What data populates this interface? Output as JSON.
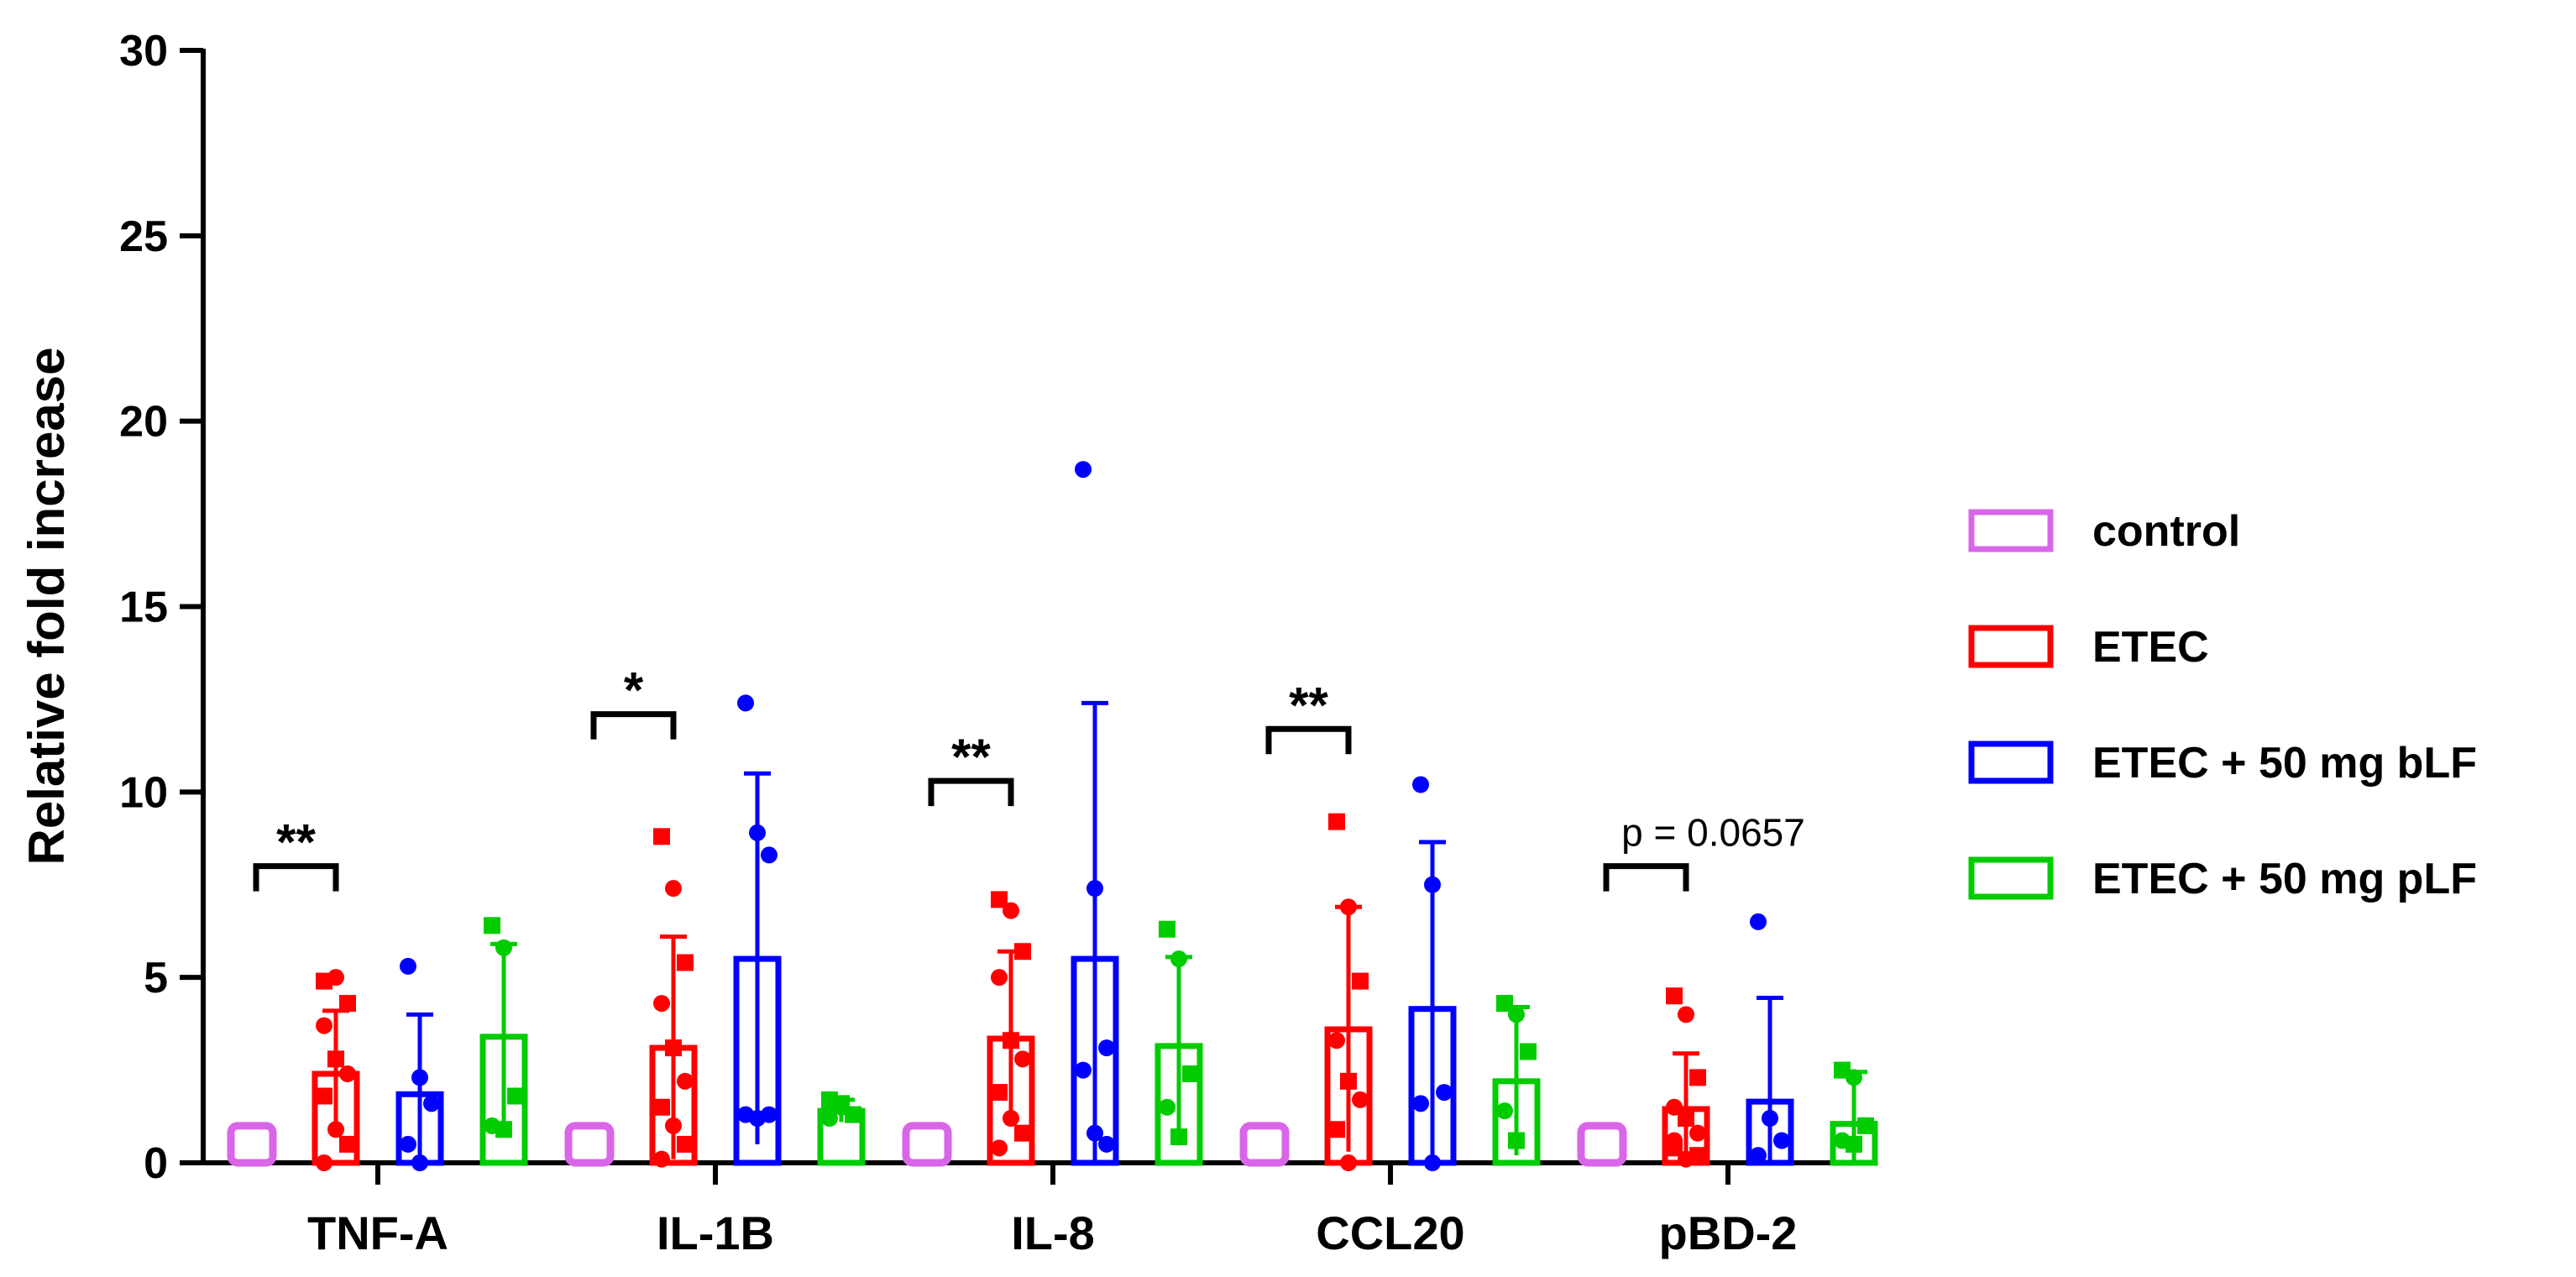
{
  "chart_data": {
    "type": "bar",
    "title": "",
    "xlabel": "",
    "ylabel": "Relative fold increase",
    "ylim": [
      0,
      30
    ],
    "yticks": [
      "0",
      "5",
      "10",
      "15",
      "20",
      "25",
      "30"
    ],
    "categories": [
      "TNF-A",
      "IL-1B",
      "IL-8",
      "CCL20",
      "pBD-2"
    ],
    "legend_position": "right",
    "series": [
      {
        "name": "control",
        "color": "#d966e8",
        "values": [
          1,
          1,
          1,
          1,
          1
        ],
        "errors": [
          0,
          0,
          0,
          0,
          0
        ],
        "points": [
          [],
          [],
          [],
          [],
          []
        ]
      },
      {
        "name": "ETEC",
        "color": "#ff0000",
        "values": [
          2.4,
          3.1,
          3.35,
          3.6,
          1.45
        ],
        "errors": [
          1.7,
          3.0,
          2.35,
          3.3,
          1.5
        ],
        "points": [
          [
            4.9,
            5.0,
            4.3,
            3.7,
            2.8,
            2.4,
            1.8,
            0.9,
            0.5,
            0
          ],
          [
            8.8,
            7.4,
            5.4,
            4.3,
            3.1,
            2.2,
            1.5,
            1.0,
            0.5,
            0.1
          ],
          [
            7.1,
            6.8,
            5.7,
            5.0,
            3.3,
            2.8,
            1.9,
            1.2,
            0.8,
            0.4
          ],
          [
            9.2,
            6.9,
            4.9,
            3.3,
            2.2,
            1.7,
            0.9,
            0
          ],
          [
            4.5,
            4.0,
            2.3,
            1.5,
            1.2,
            0.8,
            0.4,
            0.1,
            0.2,
            0.6
          ]
        ]
      },
      {
        "name": "ETEC + 50 mg bLF",
        "color": "#0000ff",
        "values": [
          1.85,
          5.5,
          5.5,
          4.15,
          1.65
        ],
        "errors": [
          2.15,
          5.0,
          6.9,
          4.5,
          2.8
        ],
        "points": [
          [
            5.3,
            2.3,
            1.6,
            0.5,
            0
          ],
          [
            12.4,
            8.9,
            8.3,
            1.3,
            1.2,
            1.3
          ],
          [
            18.7,
            7.4,
            3.1,
            2.5,
            0.8,
            0.5
          ],
          [
            10.2,
            7.5,
            1.9,
            1.6,
            0
          ],
          [
            6.5,
            1.2,
            0.6,
            0.2
          ]
        ]
      },
      {
        "name": "ETEC + 50 mg pLF",
        "color": "#00cc00",
        "values": [
          3.4,
          1.4,
          3.15,
          2.2,
          1.05
        ],
        "errors": [
          2.5,
          0.3,
          2.4,
          2.0,
          1.4
        ],
        "points": [
          [
            6.4,
            5.8,
            1.8,
            1.0,
            0.9
          ],
          [
            1.7,
            1.5,
            1.3,
            1.2,
            1.6
          ],
          [
            6.3,
            5.5,
            2.4,
            1.5,
            0.7
          ],
          [
            4.3,
            4.0,
            3.0,
            1.4,
            0.6
          ],
          [
            2.5,
            2.3,
            1.0,
            0.6,
            0.5
          ]
        ]
      }
    ],
    "annotations": [
      {
        "category": "TNF-A",
        "label": "**",
        "y": 8.0
      },
      {
        "category": "IL-1B",
        "label": "*",
        "y": 12.1
      },
      {
        "category": "IL-8",
        "label": "**",
        "y": 10.3
      },
      {
        "category": "CCL20",
        "label": "**",
        "y": 11.7
      },
      {
        "category": "pBD-2",
        "label": "p = 0.0657",
        "y": 8.0
      }
    ]
  }
}
